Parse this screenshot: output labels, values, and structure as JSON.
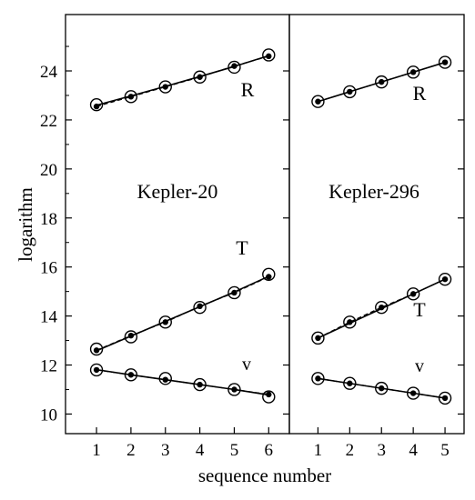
{
  "chart_data": [
    {
      "type": "line",
      "title": "Kepler-20",
      "xlabel": "sequence number",
      "ylabel": "logarithm",
      "x": [
        1,
        2,
        3,
        4,
        5,
        6
      ],
      "xlim": [
        0.1,
        6.6
      ],
      "ylim": [
        9.2,
        26.3
      ],
      "xticks": [
        1,
        2,
        3,
        4,
        5,
        6
      ],
      "yticks": [
        10,
        12,
        14,
        16,
        18,
        20,
        22,
        24
      ],
      "series": [
        {
          "name": "R",
          "observed": [
            22.62,
            22.95,
            23.35,
            23.75,
            24.15,
            24.65
          ],
          "model": [
            22.55,
            22.95,
            23.35,
            23.75,
            24.2,
            24.6
          ],
          "fit": [
            22.6,
            22.98,
            23.37,
            23.77,
            24.18,
            24.62
          ]
        },
        {
          "name": "T",
          "observed": [
            12.65,
            13.15,
            13.75,
            14.35,
            14.95,
            15.7
          ],
          "model": [
            12.6,
            13.2,
            13.75,
            14.4,
            14.95,
            15.6
          ],
          "fit": [
            12.58,
            13.18,
            13.78,
            14.38,
            14.98,
            15.62
          ]
        },
        {
          "name": "v",
          "observed": [
            11.8,
            11.6,
            11.45,
            11.2,
            11.0,
            10.7
          ],
          "model": [
            11.8,
            11.6,
            11.4,
            11.2,
            11.0,
            10.8
          ],
          "fit": [
            11.81,
            11.6,
            11.4,
            11.2,
            11.0,
            10.78
          ]
        }
      ]
    },
    {
      "type": "line",
      "title": "Kepler-296",
      "xlabel": "sequence number",
      "ylabel": "logarithm",
      "x": [
        1,
        2,
        3,
        4,
        5
      ],
      "xlim": [
        0.1,
        5.6
      ],
      "ylim": [
        9.2,
        26.3
      ],
      "xticks": [
        1,
        2,
        3,
        4,
        5
      ],
      "series": [
        {
          "name": "R",
          "observed": [
            22.75,
            23.15,
            23.55,
            23.95,
            24.35
          ],
          "model": [
            22.75,
            23.15,
            23.55,
            23.95,
            24.35
          ],
          "fit": [
            22.75,
            23.15,
            23.55,
            23.95,
            24.35
          ]
        },
        {
          "name": "T",
          "observed": [
            13.1,
            13.75,
            14.35,
            14.9,
            15.5
          ],
          "model": [
            13.1,
            13.75,
            14.35,
            14.9,
            15.5
          ],
          "fit": [
            13.1,
            13.7,
            14.3,
            14.9,
            15.5
          ]
        },
        {
          "name": "v",
          "observed": [
            11.45,
            11.25,
            11.05,
            10.85,
            10.65
          ],
          "model": [
            11.45,
            11.25,
            11.05,
            10.85,
            10.65
          ],
          "fit": [
            11.45,
            11.25,
            11.05,
            10.85,
            10.65
          ]
        }
      ]
    }
  ]
}
